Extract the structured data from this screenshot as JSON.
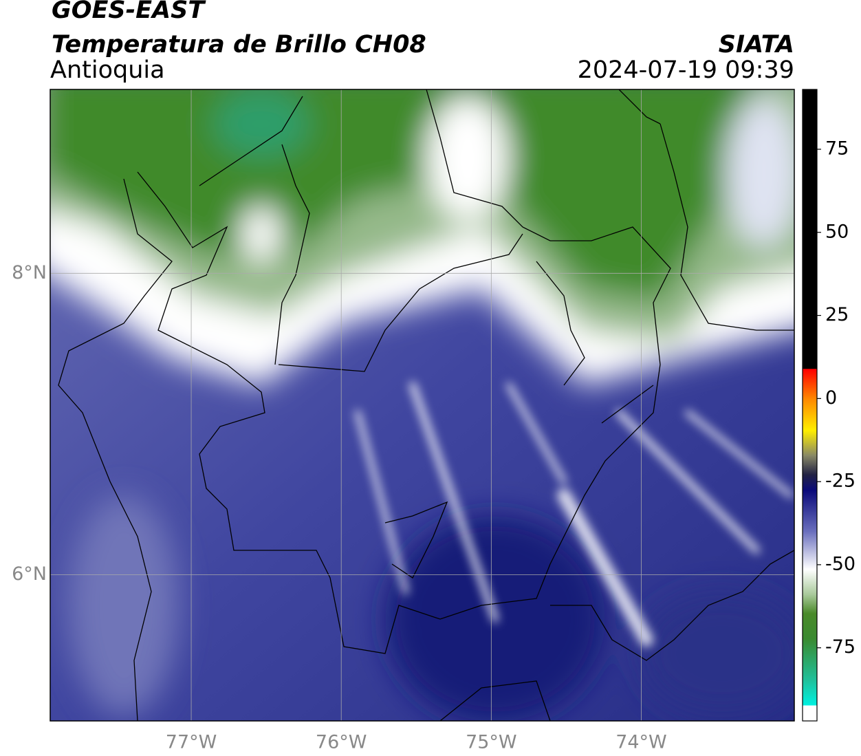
{
  "header": {
    "title": "GOES-EAST",
    "subtitle": "Temperatura de Brillo CH08",
    "region": "Antioquia",
    "source": "SIATA",
    "timestamp": "2024-07-19 09:39"
  },
  "map": {
    "xlim": [
      -77.94,
      -72.98
    ],
    "ylim": [
      5.03,
      9.22
    ],
    "xticks": [
      {
        "value": -77,
        "label": "77°W"
      },
      {
        "value": -76,
        "label": "76°W"
      },
      {
        "value": -75,
        "label": "75°W"
      },
      {
        "value": -74,
        "label": "74°W"
      }
    ],
    "yticks": [
      {
        "value": 6,
        "label": "6°N"
      },
      {
        "value": 8,
        "label": "8°N"
      }
    ],
    "grid": true
  },
  "colorbar": {
    "lim": [
      -97,
      93
    ],
    "ticks": [
      75,
      50,
      25,
      0,
      -25,
      -50,
      -75
    ]
  }
}
